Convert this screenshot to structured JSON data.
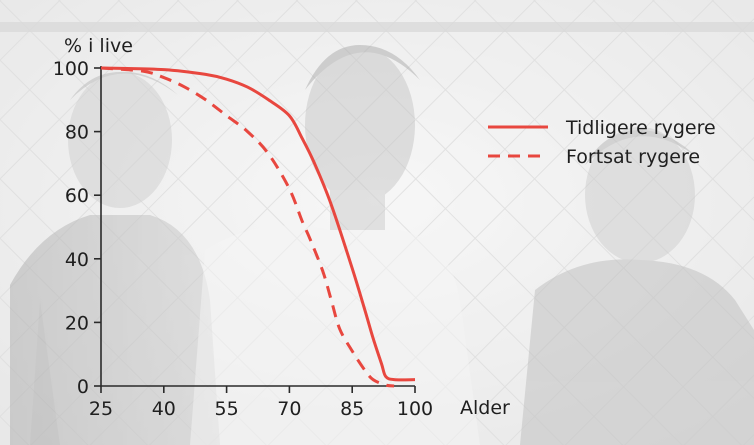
{
  "chart_data": {
    "type": "line",
    "title": "",
    "ylabel": "% i live",
    "xlabel": "Alder",
    "xlim": [
      25,
      100
    ],
    "ylim": [
      0,
      100
    ],
    "x_ticks": [
      "25",
      "40",
      "55",
      "70",
      "85",
      "100"
    ],
    "y_ticks": [
      "0",
      "20",
      "40",
      "60",
      "80",
      "100"
    ],
    "legend_position": "right",
    "series": [
      {
        "name": "Tidligere rygere",
        "style": "solid",
        "color": "#e8473f",
        "points": [
          [
            25,
            100
          ],
          [
            40,
            99.5
          ],
          [
            50,
            98
          ],
          [
            55,
            96.5
          ],
          [
            60,
            94
          ],
          [
            65,
            90
          ],
          [
            70,
            85
          ],
          [
            73,
            78
          ],
          [
            76,
            70
          ],
          [
            80,
            57
          ],
          [
            85,
            37
          ],
          [
            88,
            24
          ],
          [
            90,
            15
          ],
          [
            92,
            7
          ],
          [
            93,
            3
          ],
          [
            95,
            2
          ],
          [
            100,
            2
          ]
        ]
      },
      {
        "name": "Fortsat rygere",
        "style": "dashed",
        "color": "#e8473f",
        "points": [
          [
            25,
            100
          ],
          [
            35,
            99
          ],
          [
            40,
            97
          ],
          [
            45,
            94
          ],
          [
            50,
            90
          ],
          [
            55,
            85
          ],
          [
            60,
            80
          ],
          [
            65,
            73
          ],
          [
            70,
            62
          ],
          [
            73,
            52
          ],
          [
            75,
            46
          ],
          [
            78,
            36
          ],
          [
            80,
            27
          ],
          [
            82,
            18
          ],
          [
            85,
            11
          ],
          [
            88,
            5
          ],
          [
            90,
            2
          ],
          [
            93,
            0.3
          ],
          [
            95,
            0
          ]
        ]
      }
    ],
    "background": "photograph of three young men in front of a chain-link fence, washed out",
    "colors": {
      "series": "#e8473f",
      "axis": "#2a2a2a",
      "text": "#1f1f1f"
    }
  }
}
